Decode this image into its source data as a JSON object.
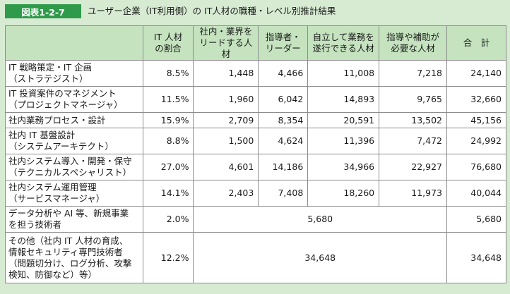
{
  "figure": {
    "label": "図表1-2-7",
    "title": "ユーザー企業（IT利用側）の IT人材の職種・レベル別推計結果"
  },
  "table": {
    "headers": [
      "",
      "IT 人材\nの割合",
      "社内・業界を\nリードする人材",
      "指導者・\nリーダー",
      "自立して業務を\n遂行できる人材",
      "指導や補助が\n必要な人材",
      "合　計"
    ],
    "rows": [
      {
        "name": "IT 戦略策定・IT 企画\n（ストラテジスト）",
        "ratio": "8.5%",
        "lead": "1,448",
        "leader": "4,466",
        "independent": "11,008",
        "support": "7,218",
        "total": "24,140"
      },
      {
        "name": "IT 投資案件のマネジメント\n（プロジェクトマネージャ）",
        "ratio": "11.5%",
        "lead": "1,960",
        "leader": "6,042",
        "independent": "14,893",
        "support": "9,765",
        "total": "32,660"
      },
      {
        "name": "社内業務プロセス・設計",
        "ratio": "15.9%",
        "lead": "2,709",
        "leader": "8,354",
        "independent": "20,591",
        "support": "13,502",
        "total": "45,156"
      },
      {
        "name": "社内 IT 基盤設計\n（システムアーキテクト）",
        "ratio": "8.8%",
        "lead": "1,500",
        "leader": "4,624",
        "independent": "11,396",
        "support": "7,472",
        "total": "24,992"
      },
      {
        "name": "社内システム導入・開発・保守\n（テクニカルスペシャリスト）",
        "ratio": "27.0%",
        "lead": "4,601",
        "leader": "14,186",
        "independent": "34,966",
        "support": "22,927",
        "total": "76,680"
      },
      {
        "name": "社内システム運用管理\n（サービスマネージャ）",
        "ratio": "14.1%",
        "lead": "2,403",
        "leader": "7,408",
        "independent": "18,260",
        "support": "11,973",
        "total": "40,044"
      }
    ],
    "merged_rows": [
      {
        "name": "データ分析や AI 等、新規事業\nを担う技術者",
        "ratio": "2.0%",
        "merged": "5,680",
        "total": "5,680"
      },
      {
        "name": "その他（社内 IT 人材の育成、\n情報セキュリティ専門技術者\n（問題切分け、ログ分析、攻撃\n検知、防御など）等）",
        "ratio": "12.2%",
        "merged": "34,648",
        "total": "34,648"
      }
    ]
  }
}
